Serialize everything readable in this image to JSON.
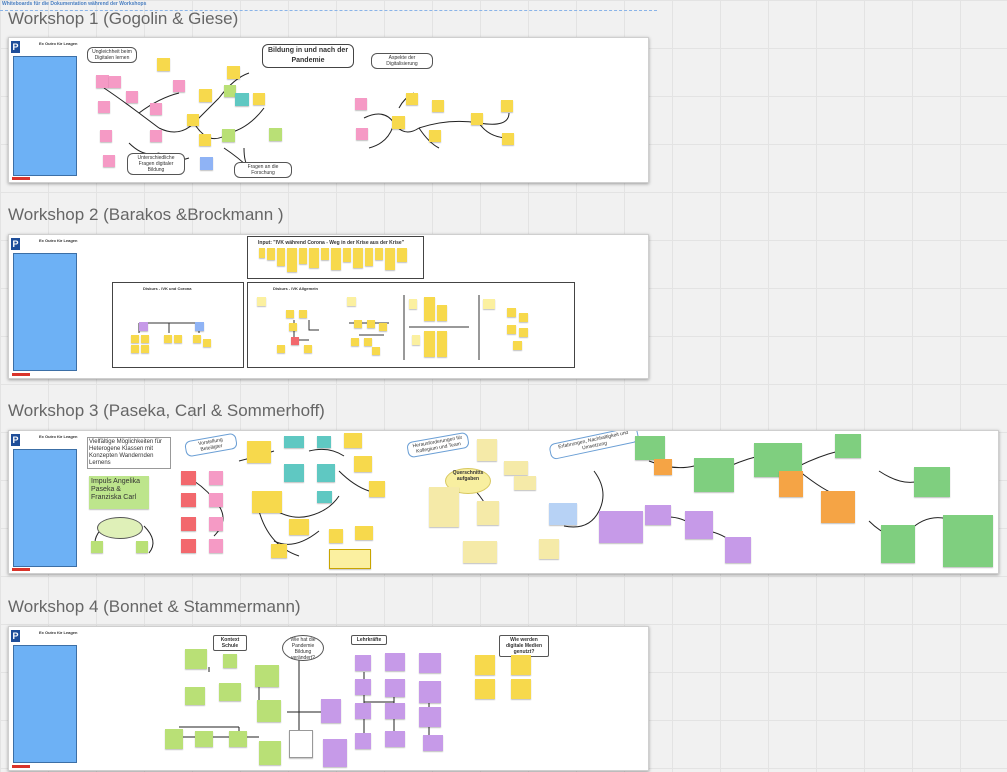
{
  "board": {
    "top_note": "Whiteboards für die Dokumentation während der Workshops"
  },
  "workshops": [
    {
      "title": "Workshop 1 (Gogolin & Giese)",
      "side_label": "Ex Outro für Leagen",
      "heading": "Bildung in und nach der Pandemie",
      "bubble_1": "Ungleichheit beim Digitalen lernen",
      "bubble_2": "Aspekte der Digitalisierung",
      "bubble_3": "Unterschiedliche Fragen digitaler Bildung",
      "bubble_4": "Fragen an die Forschung"
    },
    {
      "title": "Workshop 2 (Barakos &Brockmann )",
      "side_label": "Ex Outro für Leagen",
      "input_title": "Input: \"IVK während Corona - Weg in der Krise aus der Krise\"",
      "box_left_label": "Diskurs - IVK und Corona",
      "box_right_label": "Diskurs - IVK Allgemein"
    },
    {
      "title": "Workshop 3 (Paseka, Carl & Sommerhoff)",
      "side_label": "Ex Outro für Leagen",
      "intro_text": "Vielfältige Möglichkeiten für Heterogene Klassen mit Konzepten Wandernden Lernens",
      "impuls_text": "Impuls Angelika Paseka & Franziska Carl",
      "bubble_1": "Vorstellung Beteiligter",
      "bubble_2": "Herausforderungen für Kollegium und Team",
      "bubble_3": "Erfahrungen, Nachhaltigkeit und Umsetzung",
      "quer_label": "Querschnitts aufgaben"
    },
    {
      "title": "Workshop 4 (Bonnet & Stammermann)",
      "side_label": "Ex Outro für Leagen",
      "col_1": "Kontext Schule",
      "col_2": "Lehrkräfte",
      "col_3": "Wie werden digitale Medien genutzt?",
      "center_bubble": "Wie hat die Pandemie Bildung verändert?"
    }
  ],
  "colors": {
    "yellow": "#f7d94c",
    "pink": "#f59ac5",
    "purple": "#c69ae8",
    "green": "#b9e076",
    "teal": "#5fc8c2",
    "orange": "#f5a445",
    "red": "#f2686d",
    "blue_panel": "#6db1f5",
    "logo": "#1f4e99"
  },
  "icons": [
    "padlet-logo-icon"
  ]
}
